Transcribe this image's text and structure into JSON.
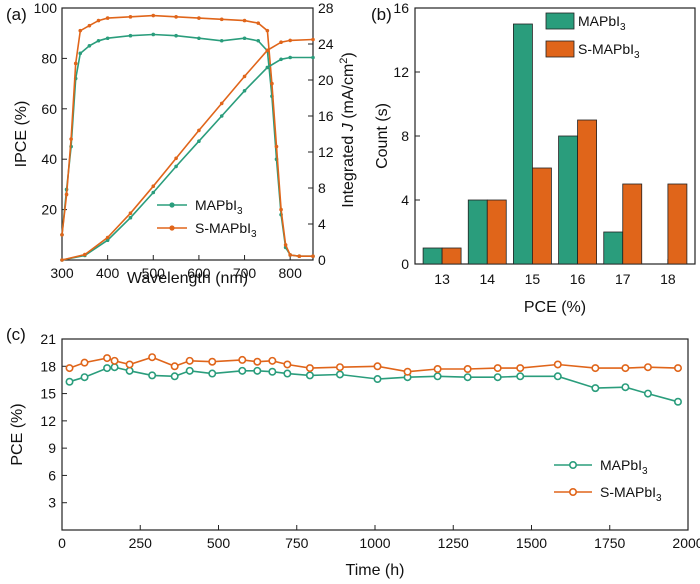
{
  "colors": {
    "mapbi3": "#2a9d7c",
    "smapbi3": "#e0651a"
  },
  "chart_data": [
    {
      "panel": "(a)",
      "type": "line",
      "xlabel": "Wavelength (nm)",
      "ylabel": "IPCE (%)",
      "y2label_pre": "Integrated ",
      "y2label_italic": "J",
      "y2label_post": " (mA/cm",
      "y2label_sup": "2",
      "y2label_end": ")",
      "xlim": [
        300,
        850
      ],
      "ylim": [
        0,
        100
      ],
      "y2lim": [
        0,
        28
      ],
      "xticks": [
        "300",
        "400",
        "500",
        "600",
        "700",
        "800"
      ],
      "yticks": [
        "20",
        "40",
        "60",
        "80",
        "100"
      ],
      "y2ticks": [
        "0",
        "4",
        "8",
        "12",
        "16",
        "20",
        "24",
        "28"
      ],
      "legend": [
        {
          "pre": "MAPbI",
          "sub": "3"
        },
        {
          "pre": "S-MAPbI",
          "sub": "3"
        }
      ],
      "series": [
        {
          "name": "MAPbI3",
          "axis": "left",
          "x": [
            300,
            310,
            320,
            330,
            340,
            360,
            380,
            400,
            450,
            500,
            550,
            600,
            650,
            700,
            730,
            750,
            760,
            770,
            780,
            790,
            800,
            820,
            850
          ],
          "y": [
            10,
            28,
            45,
            72,
            82,
            85,
            87,
            88,
            89,
            89.5,
            89,
            88,
            87,
            88,
            87,
            83,
            65,
            40,
            18,
            5,
            2,
            1.5,
            1.5
          ]
        },
        {
          "name": "S-MAPbI3",
          "axis": "left",
          "x": [
            300,
            310,
            320,
            330,
            340,
            360,
            380,
            400,
            450,
            500,
            550,
            600,
            650,
            700,
            730,
            750,
            760,
            770,
            780,
            790,
            800,
            820,
            850
          ],
          "y": [
            10,
            26,
            48,
            78,
            91,
            93,
            95,
            96,
            96.5,
            97,
            96.5,
            96,
            95.5,
            95,
            94,
            91,
            70,
            45,
            20,
            6,
            2,
            1.5,
            1.5
          ]
        },
        {
          "name": "MAPbI3 integrated J",
          "axis": "right",
          "x": [
            300,
            350,
            400,
            450,
            500,
            550,
            600,
            650,
            700,
            750,
            780,
            800,
            850
          ],
          "y": [
            0,
            0.5,
            2.2,
            4.7,
            7.5,
            10.4,
            13.2,
            16.0,
            18.8,
            21.4,
            22.3,
            22.5,
            22.5
          ]
        },
        {
          "name": "S-MAPbI3 integrated J",
          "axis": "right",
          "x": [
            300,
            350,
            400,
            450,
            500,
            550,
            600,
            650,
            700,
            750,
            780,
            800,
            850
          ],
          "y": [
            0,
            0.6,
            2.5,
            5.2,
            8.2,
            11.3,
            14.4,
            17.4,
            20.4,
            23.3,
            24.2,
            24.4,
            24.5
          ]
        }
      ]
    },
    {
      "panel": "(b)",
      "type": "bar",
      "xlabel": "PCE (%)",
      "ylabel": "Count (s)",
      "categories": [
        "13",
        "14",
        "15",
        "16",
        "17",
        "18"
      ],
      "ylim": [
        0,
        16
      ],
      "yticks": [
        "0",
        "4",
        "8",
        "12",
        "16"
      ],
      "legend": [
        {
          "pre": "MAPbI",
          "sub": "3"
        },
        {
          "pre": "S-MAPbI",
          "sub": "3"
        }
      ],
      "series": [
        {
          "name": "MAPbI3",
          "values": [
            1,
            4,
            15,
            8,
            2,
            0
          ]
        },
        {
          "name": "S-MAPbI3",
          "values": [
            1,
            4,
            6,
            9,
            5,
            5
          ]
        }
      ]
    },
    {
      "panel": "(c)",
      "type": "line",
      "xlabel": "Time (h)",
      "ylabel": "PCE (%)",
      "xlim": [
        0,
        2000
      ],
      "ylim": [
        0,
        21
      ],
      "xticks": [
        "0",
        "250",
        "500",
        "750",
        "1000",
        "1250",
        "1500",
        "1750",
        "2000"
      ],
      "yticks": [
        "3",
        "6",
        "9",
        "12",
        "15",
        "18",
        "21"
      ],
      "legend": [
        {
          "pre": "MAPbI",
          "sub": "3"
        },
        {
          "pre": "S-MAPbI",
          "sub": "3"
        }
      ],
      "series": [
        {
          "name": "MAPbI3",
          "x": [
            24,
            72,
            144,
            168,
            216,
            288,
            360,
            408,
            480,
            576,
            624,
            672,
            720,
            792,
            888,
            1008,
            1104,
            1200,
            1296,
            1392,
            1464,
            1584,
            1704,
            1800,
            1872,
            1968
          ],
          "y": [
            16.3,
            16.8,
            17.8,
            17.9,
            17.5,
            17.0,
            16.9,
            17.5,
            17.2,
            17.5,
            17.5,
            17.4,
            17.2,
            17.0,
            17.1,
            16.6,
            16.8,
            16.9,
            16.8,
            16.8,
            16.9,
            16.9,
            15.6,
            15.7,
            15.0,
            14.1
          ]
        },
        {
          "name": "S-MAPbI3",
          "x": [
            24,
            72,
            144,
            168,
            216,
            288,
            360,
            408,
            480,
            576,
            624,
            672,
            720,
            792,
            888,
            1008,
            1104,
            1200,
            1296,
            1392,
            1464,
            1584,
            1704,
            1800,
            1872,
            1968
          ],
          "y": [
            17.8,
            18.4,
            18.9,
            18.6,
            18.2,
            19.0,
            18.0,
            18.6,
            18.5,
            18.7,
            18.5,
            18.6,
            18.2,
            17.8,
            17.9,
            18.0,
            17.4,
            17.7,
            17.7,
            17.8,
            17.8,
            18.2,
            17.8,
            17.8,
            17.9,
            17.8
          ]
        }
      ]
    }
  ]
}
